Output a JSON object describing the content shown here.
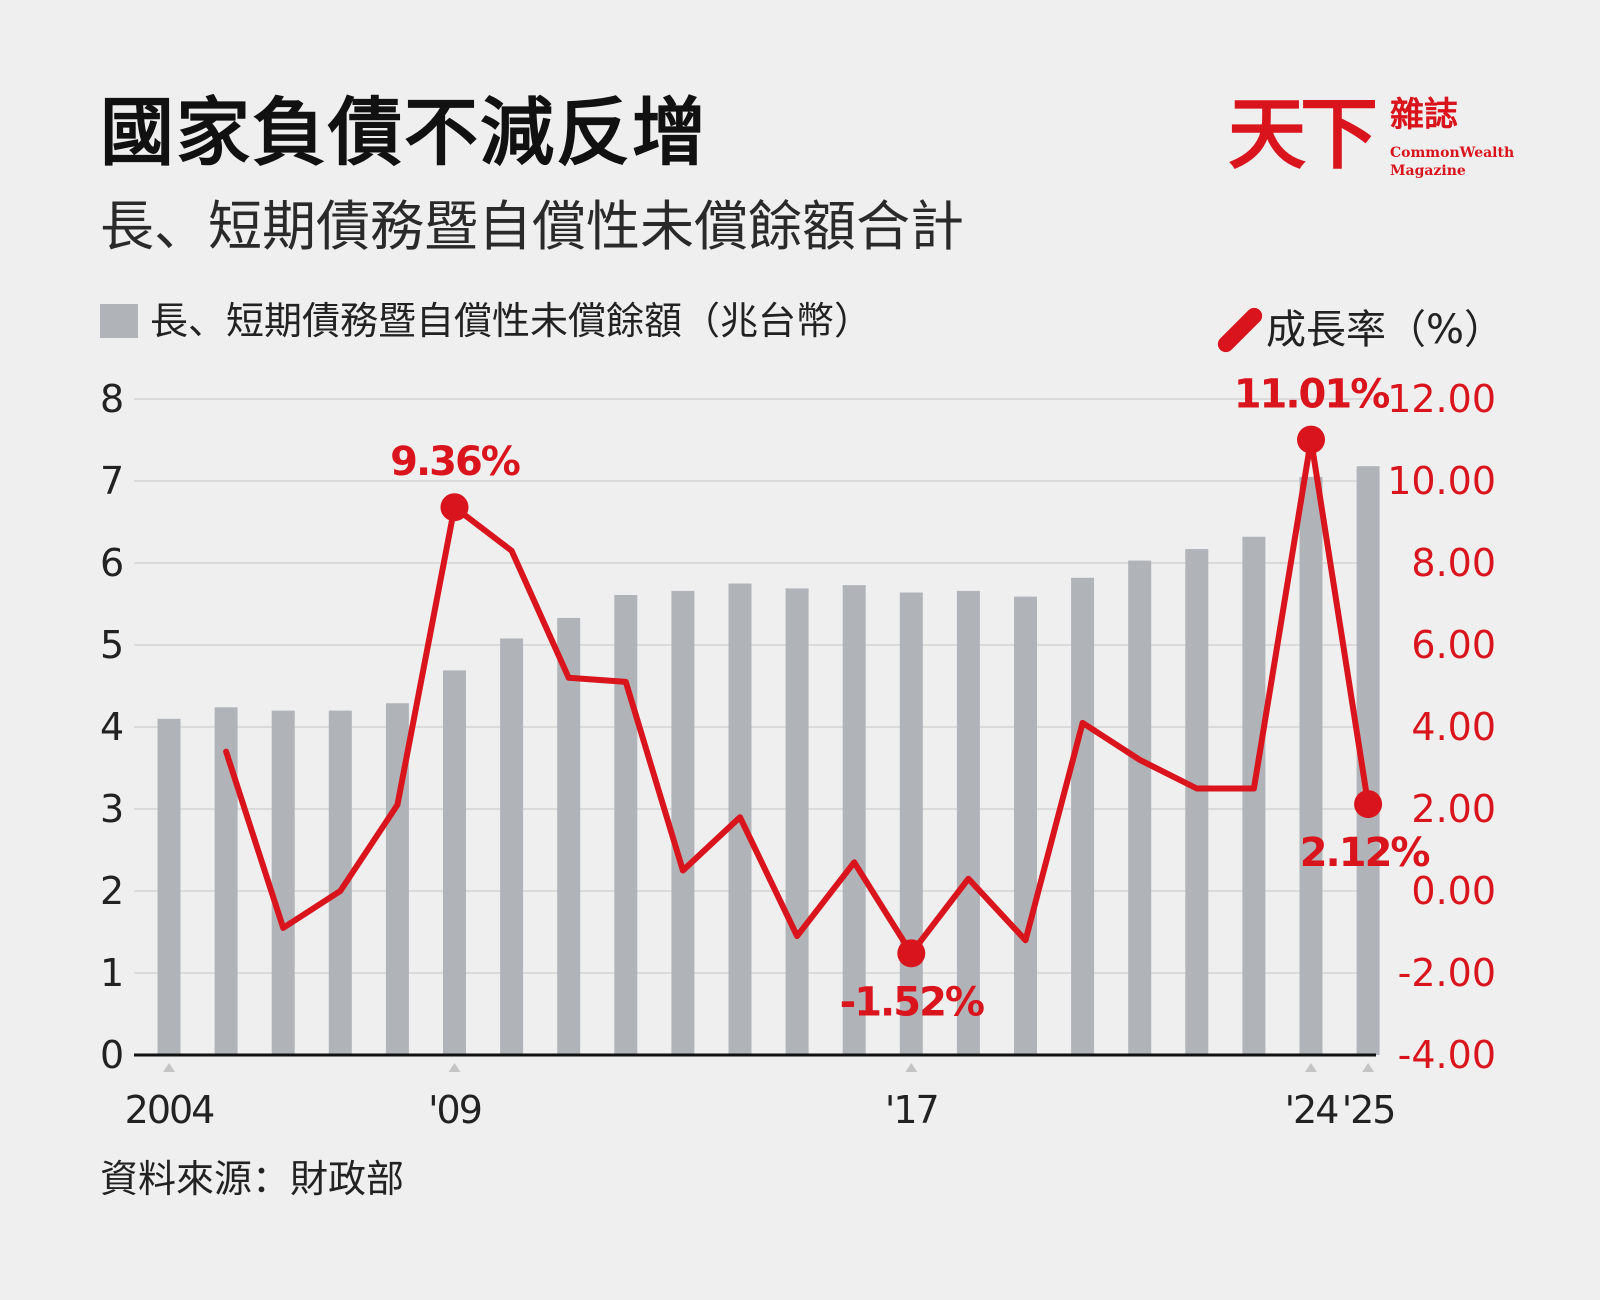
{
  "header": {
    "title": "國家負債不減反增",
    "subtitle": "長、短期債務暨自償性未償餘額合計"
  },
  "logo": {
    "main": "天下",
    "sub": "雜誌",
    "en_line1": "CommonWealth",
    "en_line2": "Magazine"
  },
  "legend": {
    "bars": "長、短期債務暨自償性未償餘額（兆台幣）",
    "line": "成長率（%）"
  },
  "source": "資料來源：財政部",
  "colors": {
    "bar": "#b0b4b8",
    "line": "#d9141c",
    "grid": "#d4d4d4",
    "axis": "#111111"
  },
  "chart_data": {
    "type": "bar+line",
    "years": [
      2004,
      2005,
      2006,
      2007,
      2008,
      2009,
      2010,
      2011,
      2012,
      2013,
      2014,
      2015,
      2016,
      2017,
      2018,
      2019,
      2020,
      2021,
      2022,
      2023,
      2024,
      2025
    ],
    "x_tick_labels": [
      {
        "year": 2004,
        "label": "2004"
      },
      {
        "year": 2009,
        "label": "'09"
      },
      {
        "year": 2017,
        "label": "'17"
      },
      {
        "year": 2024,
        "label": "'24"
      },
      {
        "year": 2025,
        "label": "'25"
      }
    ],
    "series": [
      {
        "name": "長、短期債務暨自償性未償餘額（兆台幣）",
        "type": "bar",
        "axis": "left",
        "values": [
          4.1,
          4.24,
          4.2,
          4.2,
          4.29,
          4.69,
          5.08,
          5.33,
          5.61,
          5.66,
          5.75,
          5.69,
          5.73,
          5.64,
          5.66,
          5.59,
          5.82,
          6.03,
          6.17,
          6.32,
          7.05,
          7.18
        ]
      },
      {
        "name": "成長率（%）",
        "type": "line",
        "axis": "right",
        "values": [
          null,
          3.4,
          -0.9,
          0.0,
          2.1,
          9.36,
          8.3,
          5.2,
          5.1,
          0.5,
          1.8,
          -1.1,
          0.7,
          -1.52,
          0.3,
          -1.2,
          4.1,
          3.2,
          2.5,
          2.5,
          11.01,
          2.12
        ]
      }
    ],
    "annotations": [
      {
        "year": 2009,
        "text": "9.36%",
        "position": "above"
      },
      {
        "year": 2017,
        "text": "-1.52%",
        "position": "below"
      },
      {
        "year": 2024,
        "text": "11.01%",
        "position": "above"
      },
      {
        "year": 2025,
        "text": "2.12%",
        "position": "below"
      }
    ],
    "markers": [
      2009,
      2017,
      2024,
      2025
    ],
    "left_axis": {
      "ylim": [
        0,
        8
      ],
      "ticks": [
        "0",
        "1",
        "2",
        "3",
        "4",
        "5",
        "6",
        "7",
        "8"
      ]
    },
    "right_axis": {
      "ylim": [
        -4,
        12
      ],
      "ticks": [
        "-4.00",
        "-2.00",
        "0.00",
        "2.00",
        "4.00",
        "6.00",
        "8.00",
        "10.00",
        "12.00"
      ]
    },
    "grid": true
  }
}
